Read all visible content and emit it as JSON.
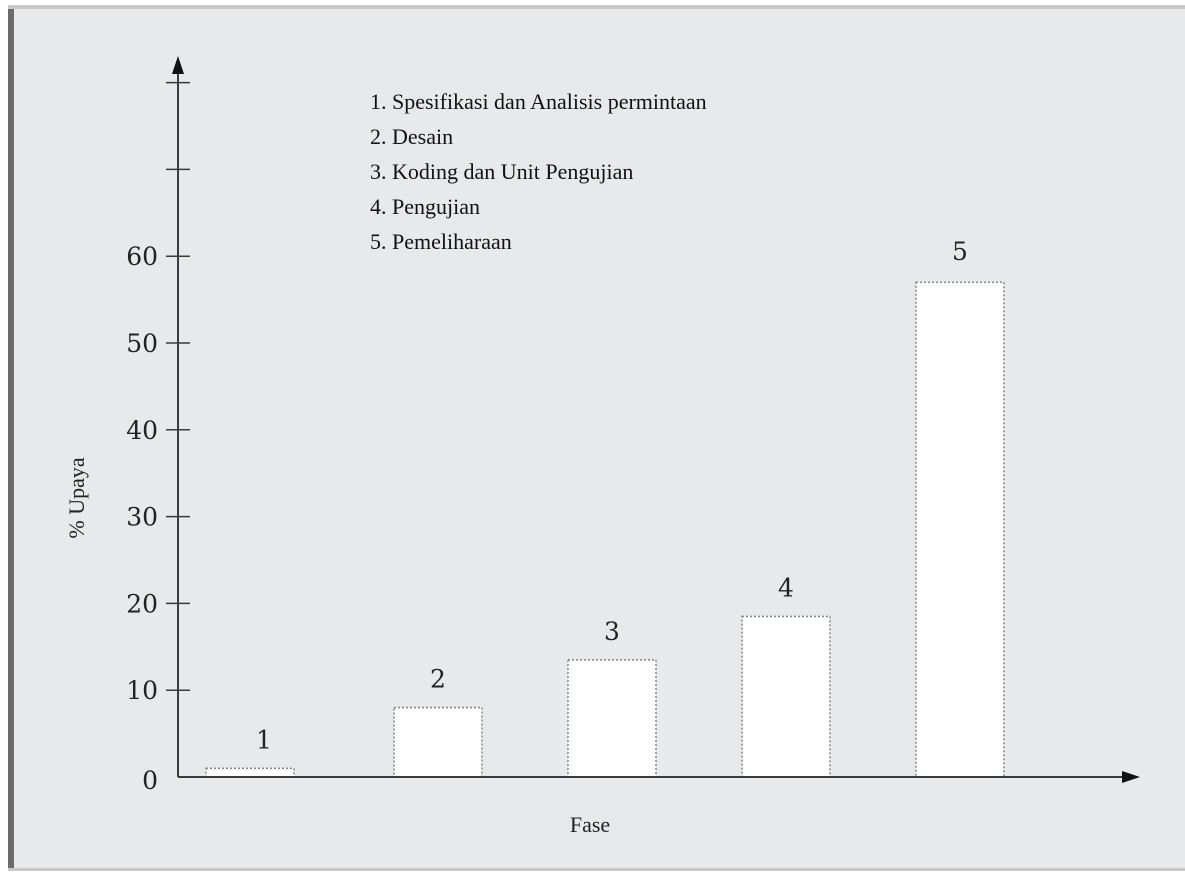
{
  "chart_data": {
    "type": "bar",
    "categories": [
      "1",
      "2",
      "3",
      "4",
      "5"
    ],
    "values": [
      1,
      8,
      13.5,
      18.5,
      57
    ],
    "xlabel": "Fase",
    "ylabel": "% Upaya",
    "ylim": [
      0,
      80
    ],
    "yticks": [
      0,
      10,
      20,
      30,
      40,
      50,
      60
    ],
    "bar_labels": [
      "1",
      "2",
      "3",
      "4",
      "5"
    ],
    "legend": [
      "1. Spesifikasi dan Analisis permintaan",
      "2. Desain",
      "3. Koding dan Unit Pengujian",
      "4. Pengujian",
      "5. Pemeliharaan"
    ],
    "legend_position": "top-center",
    "grid": false,
    "colors": {
      "background": "#e8e9ea",
      "bar_fill": "#ffffff",
      "bar_border": "#8a8a8a",
      "axis": "#3a3a3a",
      "frame_dark": "#6b6b6b",
      "frame_light": "#c8c8c8"
    }
  }
}
